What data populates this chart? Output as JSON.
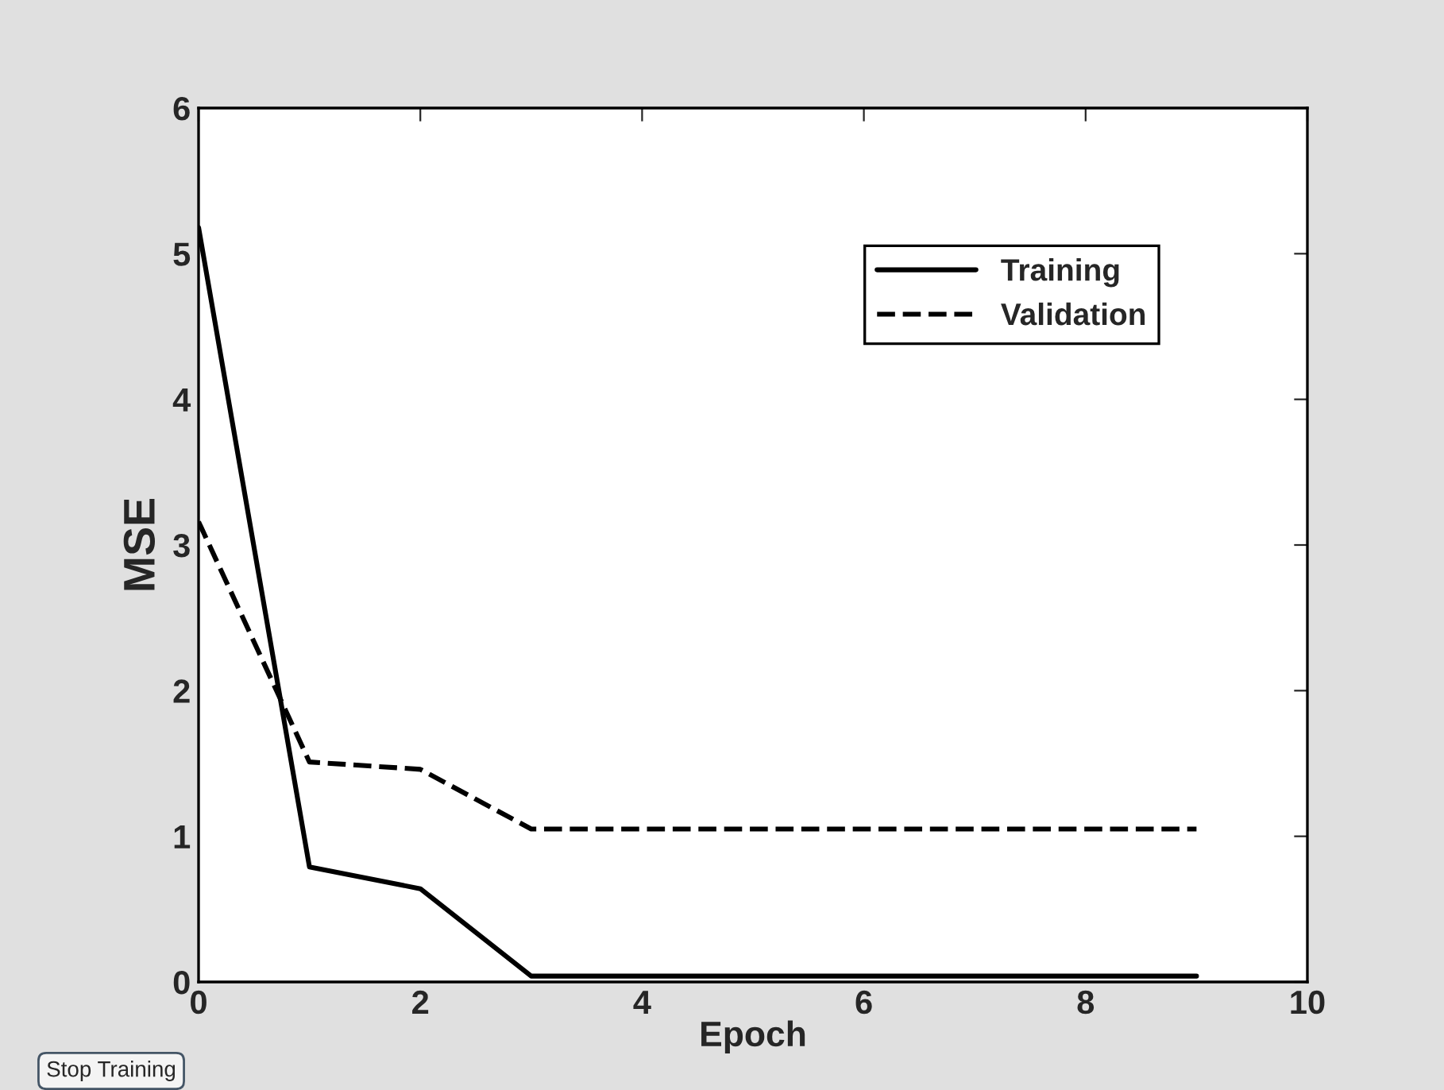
{
  "chart_data": {
    "type": "line",
    "xlabel": "Epoch",
    "ylabel": "MSE",
    "x": [
      0,
      1,
      2,
      3,
      4,
      5,
      6,
      7,
      8,
      9
    ],
    "series": [
      {
        "name": "Training",
        "color": "#000000",
        "line_style": "solid",
        "values": [
          5.18,
          0.79,
          0.64,
          0.04,
          0.04,
          0.04,
          0.04,
          0.04,
          0.04,
          0.04
        ]
      },
      {
        "name": "Validation",
        "color": "#000000",
        "line_style": "dashed",
        "values": [
          3.16,
          1.51,
          1.46,
          1.05,
          1.05,
          1.05,
          1.05,
          1.05,
          1.05,
          1.05
        ]
      }
    ],
    "xlim": [
      0,
      10
    ],
    "xticks": [
      0,
      2,
      4,
      6,
      8,
      10
    ],
    "ylim": [
      0,
      6
    ],
    "yticks": [
      0,
      1,
      2,
      3,
      4,
      5,
      6
    ],
    "legend": "top right",
    "grid": false,
    "marker": "none",
    "annotations": [
      "Stop Training"
    ]
  }
}
